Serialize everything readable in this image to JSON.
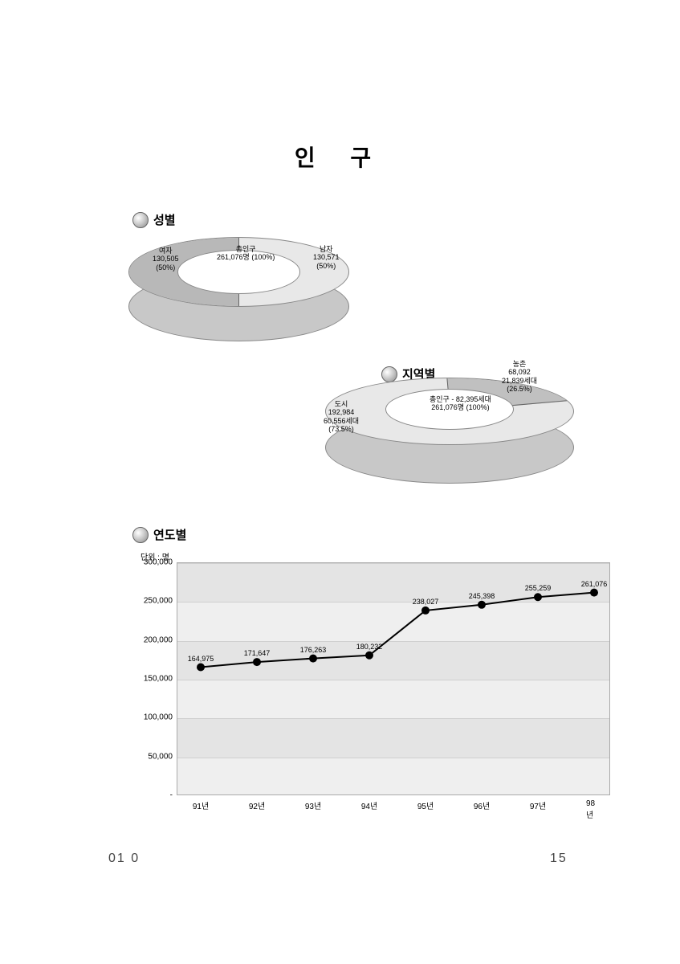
{
  "page_title": "인 구",
  "page_number_left": "01 0",
  "page_number_right": "15",
  "gender_pie": {
    "type": "pie-3d-donut",
    "section_label": "성별",
    "total": {
      "title": "총인구",
      "value": "261,076명",
      "pct": "(100%)"
    },
    "slices": [
      {
        "name": "여자",
        "value": "130,505",
        "pct": "(50%)",
        "color": "#b8b8b8"
      },
      {
        "name": "남자",
        "value": "130,571",
        "pct": "(50%)",
        "color": "#e8e8e8"
      }
    ],
    "label_fontsize": 9
  },
  "region_pie": {
    "type": "pie-3d-donut",
    "section_label": "지역별",
    "total": {
      "title": "총인구",
      "value": "261,076명",
      "households": "82,395세대",
      "pct": "(100%)"
    },
    "slices": [
      {
        "name": "도시",
        "value": "192,984",
        "households": "60,556세대",
        "pct": "(73.5%)",
        "color": "#e2e2e2"
      },
      {
        "name": "농촌",
        "value": "68,092",
        "households": "21,839세대",
        "pct": "(26.5%)",
        "color": "#c0c0c0"
      }
    ],
    "label_fontsize": 9
  },
  "year_line": {
    "type": "line",
    "section_label": "연도별",
    "unit_label": "단위 : 명",
    "x_labels": [
      "91년",
      "92년",
      "93년",
      "94년",
      "95년",
      "96년",
      "97년",
      "98년"
    ],
    "values": [
      164975,
      171647,
      176263,
      180232,
      238027,
      245398,
      255259,
      261076
    ],
    "value_labels": [
      "164,975",
      "171,647",
      "176,263",
      "180,232",
      "238,027",
      "245,398",
      "255,259",
      "261,076"
    ],
    "y_ticks": [
      0,
      50000,
      100000,
      150000,
      200000,
      250000,
      300000
    ],
    "y_tick_labels": [
      "-",
      "50,000",
      "100,000",
      "150,000",
      "200,000",
      "250,000",
      "300,000"
    ],
    "ylim": [
      0,
      300000
    ],
    "line_color": "#000000",
    "marker_color": "#000000",
    "marker_radius": 5,
    "line_width": 2,
    "grid_color": "#cfcfcf",
    "plot_bg": "#efefef",
    "alt_row_bg": "#e4e4e4",
    "label_fontsize": 10
  }
}
